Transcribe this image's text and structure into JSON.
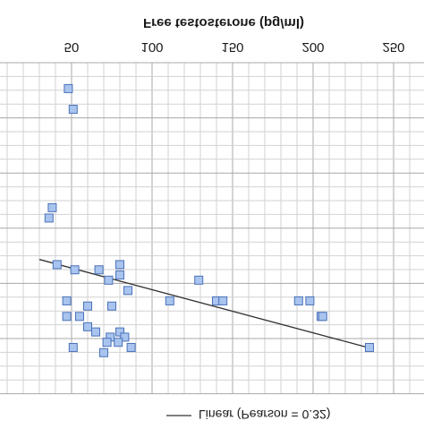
{
  "chart_data": {
    "type": "scatter",
    "title": "",
    "xlabel": "Free testosterone (pg/ml)",
    "ylabel": "",
    "x_ticks": [
      50,
      100,
      150,
      200,
      250
    ],
    "x_tick_labels": [
      "50",
      "100",
      "150",
      "200",
      "250"
    ],
    "xlim": [
      20,
      260
    ],
    "ylim": [
      0,
      6.4
    ],
    "y_tick_labels": [],
    "grid": true,
    "legend_position": "bottom",
    "series": [
      {
        "name": "",
        "marker": "square",
        "points": [
          [
            48,
            5.9
          ],
          [
            51,
            5.5
          ],
          [
            47,
            1.5
          ],
          [
            55,
            1.5
          ],
          [
            38,
            3.6
          ],
          [
            36,
            3.4
          ],
          [
            41,
            2.5
          ],
          [
            52,
            2.4
          ],
          [
            67,
            2.4
          ],
          [
            80,
            2.5
          ],
          [
            80,
            2.3
          ],
          [
            73,
            2.2
          ],
          [
            85,
            2.0
          ],
          [
            129,
            2.2
          ],
          [
            75,
            1.7
          ],
          [
            47,
            1.8
          ],
          [
            60,
            1.7
          ],
          [
            111,
            1.8
          ],
          [
            191,
            1.8
          ],
          [
            205,
            1.5
          ],
          [
            60,
            1.3
          ],
          [
            80,
            1.2
          ],
          [
            65,
            1.2
          ],
          [
            74,
            1.1
          ],
          [
            83,
            1.1
          ],
          [
            72,
            1.0
          ],
          [
            70,
            0.8
          ],
          [
            51,
            0.9
          ],
          [
            87,
            0.9
          ],
          [
            140,
            1.8
          ],
          [
            144,
            1.8
          ],
          [
            198,
            1.8
          ],
          [
            206,
            1.5
          ],
          [
            235,
            0.9
          ],
          [
            79,
            1.0
          ]
        ]
      }
    ],
    "fit": {
      "name": "Linear (Pearson = 0.32)",
      "x": [
        30,
        234
      ],
      "y": [
        2.6,
        0.9
      ]
    }
  },
  "colors": {
    "marker_fill": "#a9c4ee",
    "marker_stroke": "#4a72b8",
    "fit_line": "#333333"
  }
}
